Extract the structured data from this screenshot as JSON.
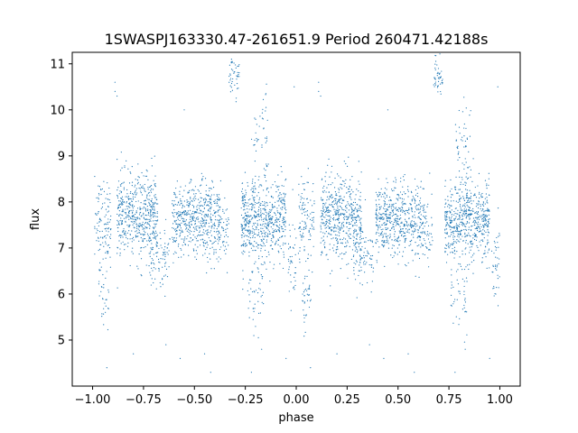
{
  "chart_data": {
    "type": "scatter",
    "title": "1SWASPJ163330.47-261651.9 Period 260471.42188s",
    "xlabel": "phase",
    "ylabel": "flux",
    "xlim": [
      -1.1,
      1.1
    ],
    "ylim": [
      4.0,
      11.25
    ],
    "xticks": [
      -1.0,
      -0.75,
      -0.5,
      -0.25,
      0.0,
      0.25,
      0.5,
      0.75,
      1.0
    ],
    "xtick_labels": [
      "−1.00",
      "−0.75",
      "−0.50",
      "−0.25",
      "0.00",
      "0.25",
      "0.50",
      "0.75",
      "1.00"
    ],
    "yticks": [
      5,
      6,
      7,
      8,
      9,
      10,
      11
    ],
    "ytick_labels": [
      "5",
      "6",
      "7",
      "8",
      "9",
      "10",
      "11"
    ],
    "grid": false,
    "point_color": "#1f77b4",
    "series": [
      {
        "description_points": "phase-folded light curve, repeated over two cycles",
        "clusters": [
          {
            "x_range": [
              -0.99,
              -0.91
            ],
            "y_center": 7.6,
            "y_spread": 0.45,
            "n": 110
          },
          {
            "x_range": [
              -0.97,
              -0.92
            ],
            "y_center": 6.0,
            "y_spread": 0.35,
            "n": 35
          },
          {
            "x_range": [
              -0.88,
              -0.68
            ],
            "y_center": 7.7,
            "y_spread": 0.45,
            "n": 520
          },
          {
            "x_range": [
              -0.72,
              -0.62
            ],
            "y_center": 6.8,
            "y_spread": 0.35,
            "n": 90
          },
          {
            "x_range": [
              -0.61,
              -0.37
            ],
            "y_center": 7.6,
            "y_spread": 0.4,
            "n": 560
          },
          {
            "x_range": [
              -0.37,
              -0.33
            ],
            "y_center": 7.3,
            "y_spread": 0.35,
            "n": 40
          },
          {
            "x_range": [
              -0.33,
              -0.28
            ],
            "y_center": 10.7,
            "y_spread": 0.2,
            "n": 45
          },
          {
            "x_range": [
              -0.27,
              -0.05
            ],
            "y_center": 7.6,
            "y_spread": 0.45,
            "n": 600
          },
          {
            "x_range": [
              -0.22,
              -0.14
            ],
            "y_center": 9.3,
            "y_spread": 0.5,
            "n": 45
          },
          {
            "x_range": [
              -0.24,
              -0.16
            ],
            "y_center": 5.9,
            "y_spread": 0.4,
            "n": 45
          },
          {
            "x_range": [
              -0.04,
              0.0
            ],
            "y_center": 6.7,
            "y_spread": 0.5,
            "n": 40
          }
        ],
        "scatter_outliers": [
          [
            -0.89,
            10.4
          ],
          [
            -0.89,
            10.6
          ],
          [
            -0.88,
            10.3
          ],
          [
            -0.64,
            4.9
          ],
          [
            -0.55,
            10.0
          ],
          [
            -0.57,
            4.6
          ],
          [
            -0.45,
            4.7
          ],
          [
            -0.42,
            4.3
          ],
          [
            -0.22,
            4.3
          ],
          [
            -0.17,
            4.8
          ],
          [
            -0.05,
            4.6
          ],
          [
            -0.8,
            4.7
          ],
          [
            0.11,
            10.4
          ],
          [
            0.11,
            10.6
          ],
          [
            0.12,
            10.3
          ],
          [
            0.36,
            4.9
          ],
          [
            0.45,
            10.0
          ],
          [
            0.43,
            4.6
          ],
          [
            0.55,
            4.7
          ],
          [
            0.58,
            4.3
          ],
          [
            0.78,
            4.3
          ],
          [
            0.83,
            4.8
          ],
          [
            0.95,
            4.6
          ],
          [
            0.2,
            4.7
          ],
          [
            0.99,
            10.5
          ],
          [
            -0.01,
            10.5
          ],
          [
            -0.93,
            4.4
          ],
          [
            0.07,
            4.4
          ]
        ]
      }
    ]
  }
}
